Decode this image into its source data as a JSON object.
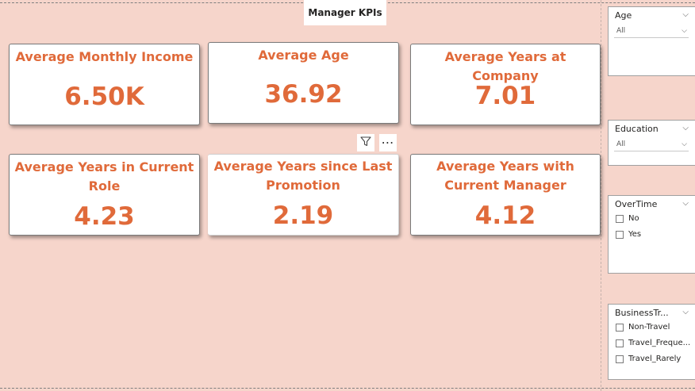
{
  "page_title": "Manager KPIs",
  "kpi_cards": [
    {
      "label": "Average Monthly Income",
      "value": "6.50K"
    },
    {
      "label": "Average Age",
      "value": "36.92"
    },
    {
      "label": "Average Years at Company",
      "value": "7.01"
    },
    {
      "label": "Average Years in Current Role",
      "value": "4.23"
    },
    {
      "label": "Average Years since Last Promotion",
      "value": "2.19"
    },
    {
      "label": "Average Years with Current Manager",
      "value": "4.12"
    }
  ],
  "visual_header": {
    "filter_icon": "funnel-icon",
    "more_icon": "more-options-icon",
    "more_glyph": "⋯"
  },
  "slicers": {
    "age": {
      "title": "Age",
      "selected": "All"
    },
    "education": {
      "title": "Education",
      "selected": "All"
    },
    "overtime": {
      "title": "OverTime",
      "options": [
        "No",
        "Yes"
      ]
    },
    "business_travel": {
      "title": "BusinessTr...",
      "options": [
        "Non-Travel",
        "Travel_Freque...",
        "Travel_Rarely"
      ]
    }
  },
  "colors": {
    "background": "#f6d5cb",
    "accent": "#e06a3a",
    "card": "#ffffff"
  }
}
